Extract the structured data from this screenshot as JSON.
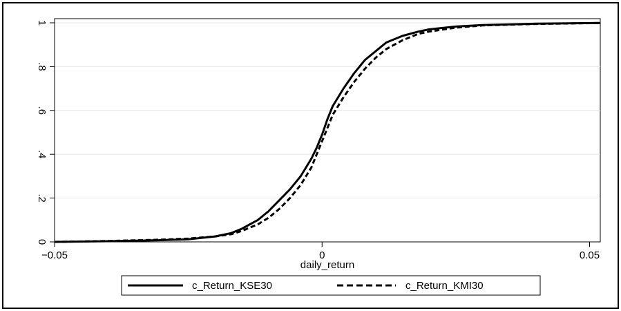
{
  "chart_data": {
    "type": "line",
    "xlabel": "daily_return",
    "ylabel": "",
    "xlim": [
      -0.05,
      0.052
    ],
    "ylim": [
      0,
      1
    ],
    "x_ticks": [
      -0.05,
      0,
      0.05
    ],
    "x_tick_labels": [
      "−0.05",
      "0",
      "0.05"
    ],
    "y_ticks": [
      0,
      0.2,
      0.4,
      0.6,
      0.8,
      1
    ],
    "y_tick_labels": [
      "0",
      ".2",
      ".4",
      ".6",
      ".8",
      "1"
    ],
    "grid": "horizontal",
    "legend_position": "bottom",
    "series": [
      {
        "name": "c_Return_KSE30",
        "style": "solid",
        "x": [
          -0.05,
          -0.04,
          -0.03,
          -0.025,
          -0.02,
          -0.017,
          -0.015,
          -0.012,
          -0.01,
          -0.008,
          -0.006,
          -0.004,
          -0.002,
          -0.001,
          0,
          0.001,
          0.002,
          0.004,
          0.006,
          0.008,
          0.01,
          0.012,
          0.015,
          0.018,
          0.02,
          0.025,
          0.03,
          0.04,
          0.052
        ],
        "y": [
          0,
          0.003,
          0.008,
          0.012,
          0.025,
          0.04,
          0.06,
          0.1,
          0.14,
          0.19,
          0.24,
          0.3,
          0.38,
          0.43,
          0.49,
          0.56,
          0.62,
          0.7,
          0.77,
          0.83,
          0.87,
          0.91,
          0.94,
          0.96,
          0.97,
          0.983,
          0.99,
          0.996,
          0.999
        ]
      },
      {
        "name": "c_Return_KMI30",
        "style": "dashed",
        "x": [
          -0.05,
          -0.04,
          -0.03,
          -0.025,
          -0.02,
          -0.017,
          -0.015,
          -0.012,
          -0.01,
          -0.008,
          -0.006,
          -0.004,
          -0.002,
          -0.001,
          0,
          0.001,
          0.002,
          0.004,
          0.006,
          0.008,
          0.01,
          0.012,
          0.015,
          0.018,
          0.02,
          0.025,
          0.03,
          0.04,
          0.052
        ],
        "y": [
          0,
          0.004,
          0.01,
          0.015,
          0.025,
          0.035,
          0.05,
          0.08,
          0.11,
          0.15,
          0.2,
          0.26,
          0.34,
          0.4,
          0.46,
          0.52,
          0.58,
          0.66,
          0.73,
          0.79,
          0.84,
          0.88,
          0.92,
          0.95,
          0.96,
          0.978,
          0.988,
          0.995,
          0.999
        ]
      }
    ]
  }
}
